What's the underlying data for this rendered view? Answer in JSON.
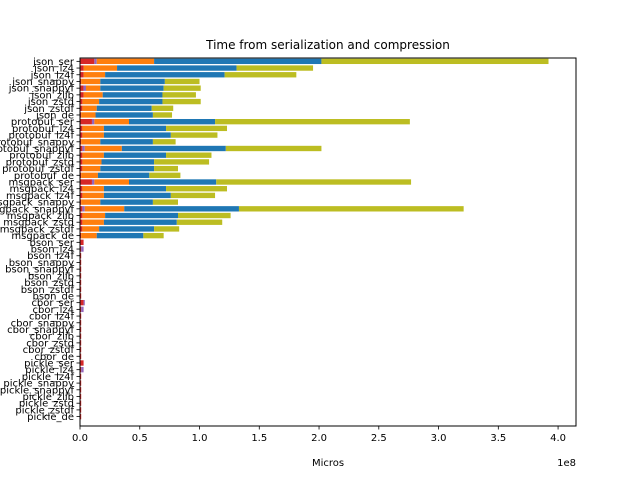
{
  "chart_data": {
    "type": "bar",
    "orientation": "horizontal",
    "stacked": true,
    "title": "Time from serialization and compression",
    "xlabel": "Micros",
    "ylabel": "",
    "x_scale_label": "1e8",
    "xlim": [
      0,
      4.15
    ],
    "x_ticks": [
      "0.0",
      "0.5",
      "1.0",
      "1.5",
      "2.0",
      "2.5",
      "3.0",
      "3.5",
      "4.0"
    ],
    "categories": [
      "json_ser",
      "json_lz4",
      "json_lz4f",
      "json_snappy",
      "json_snappyf",
      "json_zlib",
      "json_zstd",
      "json_zstdf",
      "json_de",
      "protobuf_ser",
      "protobuf_lz4",
      "protobuf_lz4f",
      "protobuf_snappy",
      "protobuf_snappyf",
      "protobuf_zlib",
      "protobuf_zstd",
      "protobuf_zstdf",
      "protobuf_de",
      "msgpack_ser",
      "msgpack_lz4",
      "msgpack_lz4f",
      "msgpack_snappy",
      "msgpack_snappyf",
      "msgpack_zlib",
      "msgpack_zstd",
      "msgpack_zstdf",
      "msgpack_de",
      "bson_ser",
      "bson_lz4",
      "bson_lz4f",
      "bson_snappy",
      "bson_snappyf",
      "bson_zlib",
      "bson_zstd",
      "bson_zstdf",
      "bson_de",
      "cbor_ser",
      "cbor_lz4",
      "cbor_lz4f",
      "cbor_snappy",
      "cbor_snappyf",
      "cbor_zlib",
      "cbor_zstd",
      "cbor_zstdf",
      "cbor_de",
      "pickle_ser",
      "pickle_lz4",
      "pickle_lz4f",
      "pickle_snappy",
      "pickle_snappyf",
      "pickle_zlib",
      "pickle_zstd",
      "pickle_zstdf",
      "pickle_de"
    ],
    "colors": {
      "red": "#d62728",
      "purple": "#9467bd",
      "orange": "#ff7f0e",
      "blue": "#1f77b4",
      "olive": "#bcbd22"
    },
    "series": [
      {
        "color": "red",
        "values": [
          0.12,
          0.03,
          0.03,
          0.01,
          0.03,
          0.03,
          0.02,
          0.02,
          0.01,
          0.1,
          0.02,
          0.02,
          0.01,
          0.02,
          0.02,
          0.02,
          0.02,
          0.01,
          0.1,
          0.02,
          0.02,
          0.01,
          0.02,
          0.02,
          0.02,
          0.02,
          0.01,
          0.03,
          0.01,
          0.01,
          0.01,
          0.01,
          0.01,
          0.01,
          0.01,
          0.01,
          0.03,
          0.01,
          0.01,
          0.01,
          0.01,
          0.01,
          0.01,
          0.01,
          0.01,
          0.03,
          0.01,
          0.01,
          0.01,
          0.01,
          0.01,
          0.01,
          0.01,
          0.01
        ]
      },
      {
        "color": "purple",
        "values": [
          0.02,
          0,
          0,
          0,
          0.02,
          0,
          0,
          0,
          0,
          0.02,
          0,
          0,
          0,
          0.02,
          0,
          0,
          0,
          0,
          0.02,
          0,
          0,
          0,
          0.02,
          0,
          0,
          0,
          0,
          0,
          0.02,
          0,
          0,
          0,
          0,
          0,
          0,
          0,
          0.01,
          0.02,
          0,
          0,
          0,
          0,
          0,
          0,
          0,
          0,
          0.02,
          0,
          0,
          0,
          0,
          0,
          0,
          0
        ]
      },
      {
        "color": "orange",
        "values": [
          0.48,
          0.28,
          0.18,
          0.16,
          0.12,
          0.16,
          0.14,
          0.12,
          0.12,
          0.29,
          0.18,
          0.18,
          0.16,
          0.31,
          0.18,
          0.16,
          0.15,
          0.14,
          0.29,
          0.18,
          0.18,
          0.16,
          0.33,
          0.19,
          0.18,
          0.14,
          0.13,
          0,
          0,
          0,
          0,
          0,
          0,
          0,
          0,
          0,
          0,
          0,
          0,
          0,
          0,
          0,
          0,
          0,
          0,
          0,
          0,
          0,
          0,
          0,
          0,
          0,
          0,
          0
        ]
      },
      {
        "color": "blue",
        "values": [
          1.4,
          1.0,
          1.0,
          0.54,
          0.53,
          0.5,
          0.53,
          0.46,
          0.48,
          0.72,
          0.52,
          0.56,
          0.44,
          0.87,
          0.52,
          0.44,
          0.45,
          0.43,
          0.73,
          0.52,
          0.56,
          0.44,
          0.96,
          0.61,
          0.61,
          0.46,
          0.39,
          0,
          0,
          0,
          0,
          0,
          0,
          0,
          0,
          0,
          0,
          0,
          0,
          0,
          0,
          0,
          0,
          0,
          0,
          0,
          0,
          0,
          0,
          0,
          0,
          0,
          0,
          0
        ]
      },
      {
        "color": "olive",
        "values": [
          1.9,
          0.64,
          0.6,
          0.29,
          0.31,
          0.28,
          0.32,
          0.18,
          0.16,
          1.63,
          0.51,
          0.39,
          0.19,
          0.8,
          0.38,
          0.46,
          0.2,
          0.26,
          1.63,
          0.51,
          0.37,
          0.21,
          1.88,
          0.44,
          0.38,
          0.21,
          0.17,
          0,
          0,
          0,
          0,
          0,
          0,
          0,
          0,
          0,
          0,
          0,
          0,
          0,
          0,
          0,
          0,
          0,
          0,
          0,
          0,
          0,
          0,
          0,
          0,
          0,
          0,
          0
        ]
      }
    ]
  }
}
